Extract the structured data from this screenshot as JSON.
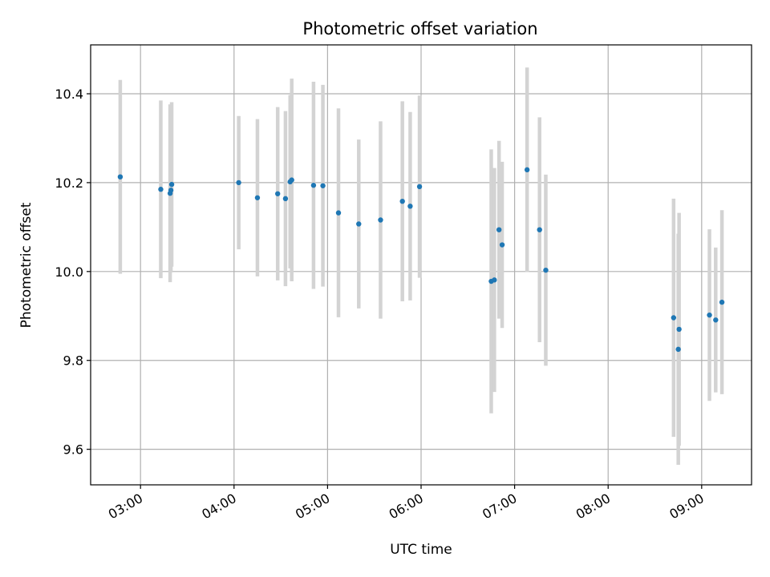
{
  "chart_data": {
    "type": "scatter",
    "title": "Photometric offset variation",
    "xlabel": "UTC time",
    "ylabel": "Photometric offset",
    "xlim": [
      "02:28",
      "09:32"
    ],
    "ylim": [
      9.52,
      10.51
    ],
    "x_ticks": [
      "03:00",
      "04:00",
      "05:00",
      "06:00",
      "07:00",
      "08:00",
      "09:00"
    ],
    "y_ticks": [
      9.6,
      9.8,
      10.0,
      10.2,
      10.4
    ],
    "y_tick_labels": [
      "9.6",
      "9.8",
      "10.0",
      "10.2",
      "10.4"
    ],
    "grid": true,
    "marker_color": "#1f77b4",
    "errorbar_color": "#d3d3d3",
    "points": [
      {
        "t": "02:47",
        "y": 10.213,
        "err": 0.218
      },
      {
        "t": "03:13",
        "y": 10.185,
        "err": 0.2
      },
      {
        "t": "03:19",
        "y": 10.176,
        "err": 0.2
      },
      {
        "t": "03:19.5",
        "y": 10.183,
        "err": 0.185
      },
      {
        "t": "03:20",
        "y": 10.196,
        "err": 0.185
      },
      {
        "t": "04:03",
        "y": 10.2,
        "err": 0.15
      },
      {
        "t": "04:15",
        "y": 10.166,
        "err": 0.177
      },
      {
        "t": "04:28",
        "y": 10.175,
        "err": 0.195
      },
      {
        "t": "04:33",
        "y": 10.164,
        "err": 0.197
      },
      {
        "t": "04:36",
        "y": 10.202,
        "err": 0.195
      },
      {
        "t": "04:37",
        "y": 10.206,
        "err": 0.228
      },
      {
        "t": "04:51",
        "y": 10.194,
        "err": 0.233
      },
      {
        "t": "04:57",
        "y": 10.193,
        "err": 0.227
      },
      {
        "t": "05:07",
        "y": 10.132,
        "err": 0.235
      },
      {
        "t": "05:20",
        "y": 10.107,
        "err": 0.19
      },
      {
        "t": "05:34",
        "y": 10.116,
        "err": 0.222
      },
      {
        "t": "05:48",
        "y": 10.158,
        "err": 0.225
      },
      {
        "t": "05:53",
        "y": 10.147,
        "err": 0.212
      },
      {
        "t": "05:59",
        "y": 10.191,
        "err": 0.205
      },
      {
        "t": "06:45",
        "y": 9.978,
        "err": 0.297
      },
      {
        "t": "06:47",
        "y": 9.981,
        "err": 0.252
      },
      {
        "t": "06:50",
        "y": 10.094,
        "err": 0.2
      },
      {
        "t": "06:52",
        "y": 10.06,
        "err": 0.187
      },
      {
        "t": "07:08",
        "y": 10.229,
        "err": 0.23
      },
      {
        "t": "07:16",
        "y": 10.094,
        "err": 0.253
      },
      {
        "t": "07:20",
        "y": 10.003,
        "err": 0.215
      },
      {
        "t": "08:42",
        "y": 9.896,
        "err": 0.268
      },
      {
        "t": "08:45",
        "y": 9.825,
        "err": 0.26
      },
      {
        "t": "08:45.5",
        "y": 9.87,
        "err": 0.262
      },
      {
        "t": "09:05",
        "y": 9.902,
        "err": 0.193
      },
      {
        "t": "09:09",
        "y": 9.891,
        "err": 0.163
      },
      {
        "t": "09:13",
        "y": 9.931,
        "err": 0.207
      }
    ]
  }
}
